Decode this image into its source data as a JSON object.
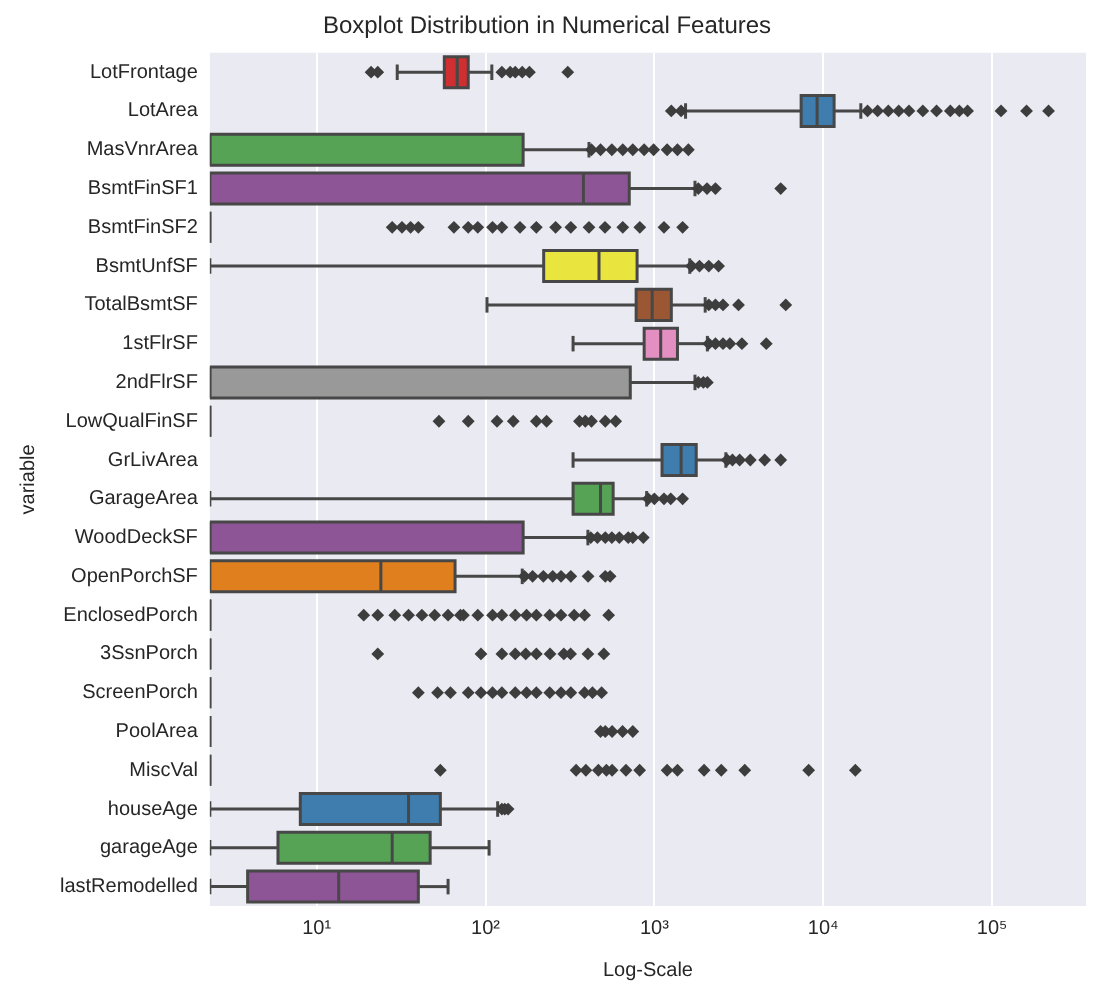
{
  "chart_data": {
    "type": "box",
    "orientation": "horizontal",
    "title": "Boxplot Distribution in Numerical Features",
    "xlabel": "Log-Scale",
    "ylabel": "variable",
    "categories": [
      "LotFrontage",
      "LotArea",
      "MasVnrArea",
      "BsmtFinSF1",
      "BsmtFinSF2",
      "BsmtUnfSF",
      "TotalBsmtSF",
      "1stFlrSF",
      "2ndFlrSF",
      "LowQualFinSF",
      "GrLivArea",
      "GarageArea",
      "WoodDeckSF",
      "OpenPorchSF",
      "EnclosedPorch",
      "3SsnPorch",
      "ScreenPorch",
      "PoolArea",
      "MiscVal",
      "houseAge",
      "garageAge",
      "lastRemodelled"
    ],
    "boxes": [
      {
        "low": 30,
        "q1": 57,
        "median": 68,
        "q3": 79,
        "high": 109,
        "outliers": [
          21,
          23,
          125,
          140,
          150,
          165,
          182,
          307
        ]
      },
      {
        "low": 1530,
        "q1": 7400,
        "median": 9200,
        "q3": 11600,
        "high": 16700,
        "outliers": [
          1260,
          1440,
          18300,
          21000,
          24300,
          28000,
          32200,
          38900,
          46900,
          56600,
          64000,
          71600,
          113000,
          160000,
          216000
        ]
      },
      {
        "low": 2.33,
        "q1": 2.33,
        "median": 2.33,
        "q3": 167,
        "high": 410,
        "outliers": [
          424,
          480,
          560,
          650,
          745,
          870,
          990,
          1190,
          1370,
          1590
        ]
      },
      {
        "low": 2.33,
        "q1": 2.33,
        "median": 380,
        "q3": 710,
        "high": 1740,
        "outliers": [
          1820,
          2050,
          2300,
          5600
        ]
      },
      {
        "low": 2.33,
        "q1": 2.33,
        "median": 2.33,
        "q3": 2.33,
        "high": 2.33,
        "outliers": [
          28,
          32,
          36,
          40,
          65,
          79,
          90,
          110,
          125,
          160,
          200,
          260,
          320,
          410,
          510,
          650,
          820,
          1140,
          1470
        ]
      },
      {
        "low": 2.33,
        "q1": 221,
        "median": 470,
        "q3": 790,
        "high": 1620,
        "outliers": [
          1660,
          1850,
          2100,
          2400
        ]
      },
      {
        "low": 102,
        "q1": 780,
        "median": 970,
        "q3": 1260,
        "high": 2000,
        "outliers": [
          2100,
          2300,
          2550,
          3150,
          6000
        ]
      },
      {
        "low": 330,
        "q1": 870,
        "median": 1090,
        "q3": 1370,
        "high": 2060,
        "outliers": [
          2100,
          2300,
          2550,
          2800,
          3300,
          4600
        ]
      },
      {
        "low": 2.33,
        "q1": 2.33,
        "median": 2.33,
        "q3": 720,
        "high": 1740,
        "outliers": [
          1820,
          1950,
          2060
        ]
      },
      {
        "low": 2.33,
        "q1": 2.33,
        "median": 2.33,
        "q3": 2.33,
        "high": 2.33,
        "outliers": [
          53,
          79,
          117,
          146,
          200,
          230,
          360,
          390,
          424,
          512,
          590
        ]
      },
      {
        "low": 330,
        "q1": 1110,
        "median": 1440,
        "q3": 1770,
        "high": 2650,
        "outliers": [
          2700,
          2900,
          3200,
          3700,
          4500,
          5600
        ]
      },
      {
        "low": 2.33,
        "q1": 330,
        "median": 480,
        "q3": 570,
        "high": 900,
        "outliers": [
          920,
          1000,
          1140,
          1250,
          1470
        ]
      },
      {
        "low": 2.33,
        "q1": 2.33,
        "median": 2.33,
        "q3": 167,
        "high": 404,
        "outliers": [
          420,
          460,
          512,
          560,
          620,
          700,
          745,
          860
        ]
      },
      {
        "low": 2.33,
        "q1": 2.33,
        "median": 24,
        "q3": 66,
        "high": 165,
        "outliers": [
          170,
          190,
          220,
          250,
          280,
          320,
          405,
          512,
          547
        ]
      },
      {
        "low": 2.33,
        "q1": 2.33,
        "median": 2.33,
        "q3": 2.33,
        "high": 2.33,
        "outliers": [
          19,
          23,
          29,
          35,
          42,
          50,
          60,
          71,
          74,
          90,
          110,
          125,
          150,
          175,
          200,
          240,
          280,
          335,
          386,
          536
        ]
      },
      {
        "low": 2.33,
        "q1": 2.33,
        "median": 2.33,
        "q3": 2.33,
        "high": 2.33,
        "outliers": [
          23,
          94,
          125,
          150,
          173,
          200,
          241,
          291,
          319,
          404,
          502
        ]
      },
      {
        "low": 2.33,
        "q1": 2.33,
        "median": 2.33,
        "q3": 2.33,
        "high": 2.33,
        "outliers": [
          40,
          52,
          62,
          79,
          94,
          110,
          125,
          150,
          175,
          200,
          240,
          280,
          320,
          386,
          430,
          487
        ]
      },
      {
        "low": 2.33,
        "q1": 2.33,
        "median": 2.33,
        "q3": 2.33,
        "high": 2.33,
        "outliers": [
          480,
          512,
          562,
          648,
          745
        ]
      },
      {
        "low": 2.33,
        "q1": 2.33,
        "median": 2.33,
        "q3": 2.33,
        "high": 2.33,
        "outliers": [
          54,
          344,
          393,
          466,
          520,
          562,
          679,
          818,
          1190,
          1370,
          1970,
          2490,
          3430,
          8200,
          15500
        ]
      },
      {
        "low": 2.33,
        "q1": 8,
        "median": 35,
        "q3": 54,
        "high": 118,
        "outliers": [
          125,
          130,
          136
        ]
      },
      {
        "low": 2.33,
        "q1": 5.9,
        "median": 28,
        "q3": 47,
        "high": 105
      },
      {
        "low": 2.33,
        "q1": 3.9,
        "median": 13.5,
        "q3": 40,
        "high": 60
      }
    ],
    "colors": [
      "#cf2f30",
      "#3e7dae",
      "#56a356",
      "#8d5595",
      null,
      "#e9e43e",
      "#9b5733",
      "#e48fc2",
      "#999999",
      null,
      "#3e7dae",
      "#56a356",
      "#8d5595",
      "#e07f1d",
      null,
      null,
      null,
      null,
      null,
      "#3e7dae",
      "#56a356",
      "#8d5595"
    ],
    "log": "x",
    "xlim": [
      2.33,
      360000
    ],
    "xticks": [
      {
        "value": 10,
        "label": "10¹"
      },
      {
        "value": 100,
        "label": "10²"
      },
      {
        "value": 1000,
        "label": "10³"
      },
      {
        "value": 10000,
        "label": "10⁴"
      },
      {
        "value": 100000,
        "label": "10⁵"
      }
    ],
    "grid": "x"
  }
}
